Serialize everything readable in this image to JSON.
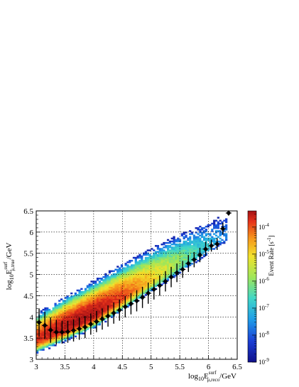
{
  "chart_data": {
    "type": "heatmap",
    "xlabel": {
      "main": "log",
      "sub1": "10",
      "E": "E",
      "sup": "surf",
      "sub2": "μ,reco",
      "unit": "/GeV"
    },
    "ylabel": {
      "main": "log",
      "sub1": "10",
      "E": "E",
      "sup": "surf",
      "sub2": "μ,true",
      "unit": "/GeV"
    },
    "colorbar_label": {
      "text": "Event Rate [s",
      "sup": "-1",
      "close": "]"
    },
    "xlim": [
      3,
      6.5
    ],
    "ylim": [
      3,
      6.5
    ],
    "x_ticks": [
      "3",
      "3.5",
      "4",
      "4.5",
      "5",
      "5.5",
      "6",
      "6.5"
    ],
    "y_ticks": [
      "3",
      "3.5",
      "4",
      "4.5",
      "5",
      "5.5",
      "6",
      "6.5"
    ],
    "x_tick_values": [
      3,
      3.5,
      4,
      4.5,
      5,
      5.5,
      6,
      6.5
    ],
    "y_tick_values": [
      3,
      3.5,
      4,
      4.5,
      5,
      5.5,
      6,
      6.5
    ],
    "colorbar": {
      "scale": "log",
      "zlim_exponent": [
        -9,
        -3.4
      ],
      "tick_exponents": [
        -9,
        -8,
        -7,
        -6,
        -5,
        -4
      ],
      "tick_base": "10"
    },
    "grid": true,
    "colormap": "rainbow",
    "heatmap_ridge": {
      "x": [
        3.0,
        3.5,
        4.0,
        4.5,
        5.0,
        5.5
      ],
      "y_center": [
        3.45,
        3.75,
        4.05,
        4.45,
        4.85,
        5.25
      ],
      "peak_log_rate": [
        -4.0,
        -3.5,
        -3.5,
        -4.3,
        -5.3,
        -6.3
      ]
    },
    "profile": {
      "x": [
        3.05,
        3.15,
        3.25,
        3.35,
        3.45,
        3.55,
        3.65,
        3.75,
        3.85,
        3.95,
        4.05,
        4.15,
        4.25,
        4.35,
        4.45,
        4.55,
        4.65,
        4.75,
        4.85,
        4.95,
        5.05,
        5.15,
        5.25,
        5.35,
        5.45,
        5.55,
        5.65,
        5.75,
        5.85,
        5.95,
        6.05,
        6.15,
        6.25,
        6.35
      ],
      "y": [
        3.87,
        3.8,
        3.69,
        3.64,
        3.64,
        3.65,
        3.68,
        3.72,
        3.76,
        3.83,
        3.89,
        3.95,
        4.02,
        4.09,
        4.16,
        4.24,
        4.31,
        4.38,
        4.46,
        4.56,
        4.65,
        4.74,
        4.84,
        4.94,
        5.04,
        5.12,
        5.26,
        5.35,
        5.46,
        5.6,
        5.68,
        5.72,
        6.08,
        6.45
      ],
      "err": [
        0.33,
        0.32,
        0.3,
        0.29,
        0.27,
        0.26,
        0.26,
        0.26,
        0.26,
        0.25,
        0.25,
        0.25,
        0.25,
        0.25,
        0.25,
        0.25,
        0.25,
        0.25,
        0.25,
        0.25,
        0.24,
        0.24,
        0.24,
        0.24,
        0.22,
        0.2,
        0.2,
        0.18,
        0.17,
        0.17,
        0.14,
        0.14,
        0.14,
        0.05
      ]
    }
  }
}
